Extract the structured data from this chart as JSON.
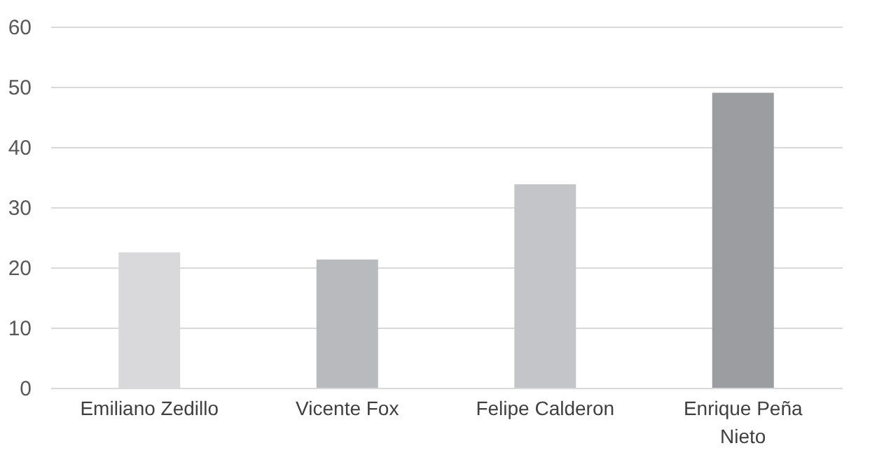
{
  "chart_data": {
    "type": "bar",
    "categories": [
      "Emiliano Zedillo",
      "Vicente Fox",
      "Felipe Calderon",
      "Enrique Peña Nieto"
    ],
    "values": [
      22.5,
      21.3,
      33.8,
      49.0
    ],
    "colors": [
      "#d9d9db",
      "#b9babd",
      "#c4c5c8",
      "#9c9da1"
    ],
    "ylim": [
      0,
      60
    ],
    "yticks": [
      0,
      10,
      20,
      30,
      40,
      50,
      60
    ],
    "grid": "y",
    "legend": false
  }
}
